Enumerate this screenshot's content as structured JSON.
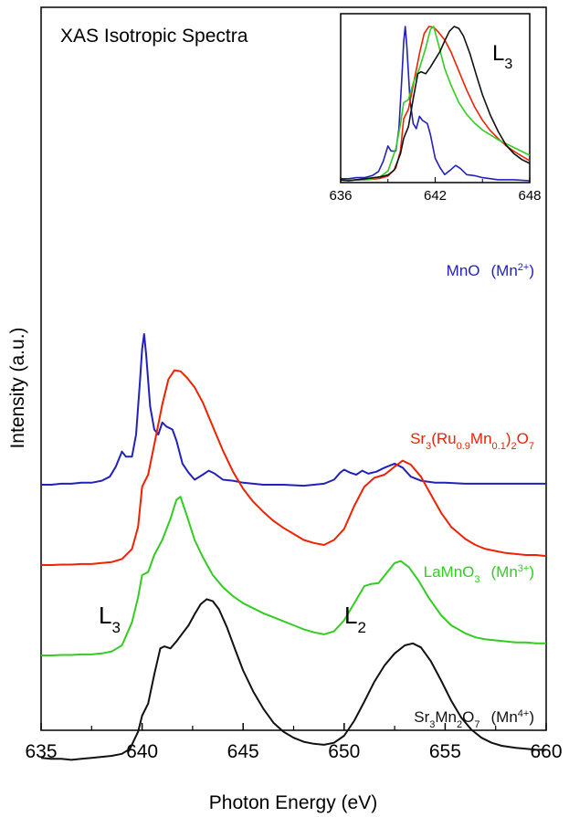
{
  "chart_data": {
    "type": "line",
    "title": "XAS Isotropic Spectra",
    "xlabel": "Photon Energy (eV)",
    "ylabel": "Intensity (a.u.)",
    "xlim": [
      635,
      660
    ],
    "x_ticks": [
      "635",
      "640",
      "645",
      "650",
      "655",
      "660"
    ],
    "series": [
      {
        "name": "MnO",
        "label_main": "MnO",
        "label_ion": "(Mn",
        "label_charge": "2+",
        "label_close": ")",
        "color": "#2222bb",
        "offset": 2.4,
        "points": [
          [
            635.0,
            0.0
          ],
          [
            635.5,
            0.0
          ],
          [
            636.0,
            0.01
          ],
          [
            636.5,
            0.01
          ],
          [
            637.0,
            0.02
          ],
          [
            637.5,
            0.02
          ],
          [
            638.0,
            0.04
          ],
          [
            638.4,
            0.08
          ],
          [
            638.7,
            0.18
          ],
          [
            639.0,
            0.33
          ],
          [
            639.2,
            0.28
          ],
          [
            639.5,
            0.28
          ],
          [
            639.7,
            0.5
          ],
          [
            639.9,
            1.05
          ],
          [
            640.0,
            1.35
          ],
          [
            640.1,
            1.5
          ],
          [
            640.2,
            1.3
          ],
          [
            640.4,
            0.78
          ],
          [
            640.6,
            0.55
          ],
          [
            640.8,
            0.5
          ],
          [
            641.0,
            0.62
          ],
          [
            641.2,
            0.58
          ],
          [
            641.5,
            0.55
          ],
          [
            641.7,
            0.44
          ],
          [
            642.0,
            0.21
          ],
          [
            642.3,
            0.12
          ],
          [
            642.6,
            0.05
          ],
          [
            643.0,
            0.1
          ],
          [
            643.3,
            0.14
          ],
          [
            643.6,
            0.11
          ],
          [
            644.0,
            0.05
          ],
          [
            644.5,
            0.04
          ],
          [
            645.0,
            0.02
          ],
          [
            646.0,
            0.0
          ],
          [
            647.0,
            0.0
          ],
          [
            648.0,
            -0.01
          ],
          [
            649.0,
            0.01
          ],
          [
            649.5,
            0.05
          ],
          [
            649.8,
            0.12
          ],
          [
            650.0,
            0.15
          ],
          [
            650.3,
            0.12
          ],
          [
            650.6,
            0.1
          ],
          [
            650.9,
            0.14
          ],
          [
            651.2,
            0.11
          ],
          [
            651.6,
            0.13
          ],
          [
            652.0,
            0.17
          ],
          [
            652.5,
            0.21
          ],
          [
            652.9,
            0.17
          ],
          [
            653.3,
            0.08
          ],
          [
            653.8,
            0.04
          ],
          [
            654.5,
            0.02
          ],
          [
            655.0,
            0.02
          ],
          [
            656.0,
            0.01
          ],
          [
            657.0,
            0.01
          ],
          [
            658.0,
            0.01
          ],
          [
            659.0,
            0.01
          ],
          [
            660.0,
            0.01
          ]
        ]
      },
      {
        "name": "Sr3(Ru0.9Mn0.1)2O7",
        "label_html": "Sr<tspan baseline-shift=\"sub\" font-size=\"11\">3</tspan>(Ru<tspan baseline-shift=\"sub\" font-size=\"11\">0.9</tspan>Mn<tspan baseline-shift=\"sub\" font-size=\"11\">0.1</tspan>)<tspan baseline-shift=\"sub\" font-size=\"11\">2</tspan>O<tspan baseline-shift=\"sub\" font-size=\"11\">7</tspan>",
        "label_text": "Sr3(Ru0.9Mn0.1)2O7",
        "color": "#ee2200",
        "offset": 1.6,
        "points": [
          [
            635.0,
            0.0
          ],
          [
            635.5,
            0.0
          ],
          [
            636.0,
            0.005
          ],
          [
            636.5,
            0.005
          ],
          [
            637.0,
            0.01
          ],
          [
            637.5,
            0.01
          ],
          [
            638.0,
            0.02
          ],
          [
            638.5,
            0.03
          ],
          [
            639.0,
            0.06
          ],
          [
            639.5,
            0.16
          ],
          [
            639.8,
            0.38
          ],
          [
            640.0,
            0.78
          ],
          [
            640.3,
            0.9
          ],
          [
            640.6,
            1.2
          ],
          [
            641.0,
            1.6
          ],
          [
            641.3,
            1.85
          ],
          [
            641.6,
            1.94
          ],
          [
            641.9,
            1.93
          ],
          [
            642.2,
            1.87
          ],
          [
            642.6,
            1.77
          ],
          [
            643.0,
            1.62
          ],
          [
            643.5,
            1.38
          ],
          [
            644.0,
            1.14
          ],
          [
            644.5,
            0.93
          ],
          [
            645.0,
            0.76
          ],
          [
            645.5,
            0.63
          ],
          [
            646.0,
            0.53
          ],
          [
            646.5,
            0.44
          ],
          [
            647.0,
            0.37
          ],
          [
            647.5,
            0.31
          ],
          [
            648.0,
            0.25
          ],
          [
            648.5,
            0.22
          ],
          [
            649.0,
            0.2
          ],
          [
            649.5,
            0.25
          ],
          [
            650.0,
            0.36
          ],
          [
            650.5,
            0.59
          ],
          [
            651.0,
            0.78
          ],
          [
            651.5,
            0.87
          ],
          [
            652.0,
            0.9
          ],
          [
            652.5,
            0.98
          ],
          [
            652.9,
            1.04
          ],
          [
            653.3,
            1.0
          ],
          [
            653.8,
            0.88
          ],
          [
            654.3,
            0.7
          ],
          [
            654.8,
            0.52
          ],
          [
            655.3,
            0.38
          ],
          [
            656.0,
            0.26
          ],
          [
            656.5,
            0.2
          ],
          [
            657.0,
            0.16
          ],
          [
            657.5,
            0.14
          ],
          [
            658.0,
            0.12
          ],
          [
            658.5,
            0.11
          ],
          [
            659.0,
            0.1
          ],
          [
            659.5,
            0.1
          ],
          [
            660.0,
            0.09
          ]
        ]
      },
      {
        "name": "LaMnO3",
        "label_main": "LaMnO",
        "label_sub": "3",
        "label_ion": "(Mn",
        "label_charge": "3+",
        "label_close": ")",
        "color": "#33cc22",
        "offset": 0.7,
        "points": [
          [
            635.0,
            0.0
          ],
          [
            635.5,
            0.0
          ],
          [
            636.0,
            0.005
          ],
          [
            636.5,
            0.005
          ],
          [
            637.0,
            0.01
          ],
          [
            637.5,
            0.01
          ],
          [
            638.0,
            0.02
          ],
          [
            638.5,
            0.04
          ],
          [
            639.0,
            0.1
          ],
          [
            639.5,
            0.33
          ],
          [
            639.8,
            0.58
          ],
          [
            640.0,
            0.8
          ],
          [
            640.3,
            0.83
          ],
          [
            640.6,
            1.0
          ],
          [
            641.0,
            1.15
          ],
          [
            641.4,
            1.36
          ],
          [
            641.7,
            1.55
          ],
          [
            641.9,
            1.58
          ],
          [
            642.2,
            1.4
          ],
          [
            642.6,
            1.15
          ],
          [
            643.0,
            0.98
          ],
          [
            643.5,
            0.8
          ],
          [
            644.0,
            0.68
          ],
          [
            644.5,
            0.59
          ],
          [
            645.0,
            0.52
          ],
          [
            645.5,
            0.47
          ],
          [
            646.0,
            0.42
          ],
          [
            646.5,
            0.38
          ],
          [
            647.0,
            0.34
          ],
          [
            647.5,
            0.3
          ],
          [
            648.0,
            0.26
          ],
          [
            648.5,
            0.23
          ],
          [
            649.0,
            0.21
          ],
          [
            649.5,
            0.24
          ],
          [
            650.0,
            0.35
          ],
          [
            650.5,
            0.52
          ],
          [
            651.0,
            0.69
          ],
          [
            651.3,
            0.71
          ],
          [
            651.7,
            0.72
          ],
          [
            652.1,
            0.82
          ],
          [
            652.5,
            0.92
          ],
          [
            652.8,
            0.94
          ],
          [
            653.2,
            0.88
          ],
          [
            653.7,
            0.74
          ],
          [
            654.2,
            0.57
          ],
          [
            654.8,
            0.4
          ],
          [
            655.3,
            0.3
          ],
          [
            656.0,
            0.22
          ],
          [
            656.5,
            0.18
          ],
          [
            657.0,
            0.16
          ],
          [
            657.5,
            0.15
          ],
          [
            658.0,
            0.14
          ],
          [
            658.5,
            0.13
          ],
          [
            659.0,
            0.13
          ],
          [
            659.5,
            0.12
          ],
          [
            660.0,
            0.12
          ]
        ]
      },
      {
        "name": "Sr3Mn2O7",
        "label_html": "Sr<tspan baseline-shift=\"sub\" font-size=\"11\">3</tspan>Mn<tspan baseline-shift=\"sub\" font-size=\"11\">2</tspan>O<tspan baseline-shift=\"sub\" font-size=\"11\">7</tspan>",
        "label_text": "Sr3Mn2O7",
        "label_ion": "(Mn",
        "label_charge": "4+",
        "label_close": ")",
        "color": "#111111",
        "offset": -0.32,
        "points": [
          [
            635.0,
            0.0
          ],
          [
            635.5,
            -0.01
          ],
          [
            636.0,
            -0.01
          ],
          [
            636.5,
            -0.02
          ],
          [
            637.0,
            -0.01
          ],
          [
            637.5,
            0.0
          ],
          [
            638.0,
            0.01
          ],
          [
            638.5,
            0.02
          ],
          [
            639.0,
            0.04
          ],
          [
            639.4,
            0.09
          ],
          [
            639.8,
            0.26
          ],
          [
            640.0,
            0.42
          ],
          [
            640.3,
            0.54
          ],
          [
            640.6,
            0.83
          ],
          [
            640.9,
            1.09
          ],
          [
            641.1,
            1.11
          ],
          [
            641.4,
            1.09
          ],
          [
            641.7,
            1.16
          ],
          [
            642.0,
            1.24
          ],
          [
            642.3,
            1.32
          ],
          [
            642.6,
            1.43
          ],
          [
            642.9,
            1.53
          ],
          [
            643.2,
            1.58
          ],
          [
            643.5,
            1.56
          ],
          [
            643.8,
            1.48
          ],
          [
            644.2,
            1.3
          ],
          [
            644.6,
            1.08
          ],
          [
            645.0,
            0.87
          ],
          [
            645.5,
            0.66
          ],
          [
            646.0,
            0.49
          ],
          [
            646.5,
            0.35
          ],
          [
            647.0,
            0.26
          ],
          [
            647.5,
            0.2
          ],
          [
            648.0,
            0.16
          ],
          [
            648.5,
            0.14
          ],
          [
            649.0,
            0.13
          ],
          [
            649.5,
            0.15
          ],
          [
            650.0,
            0.22
          ],
          [
            650.5,
            0.37
          ],
          [
            651.0,
            0.56
          ],
          [
            651.5,
            0.76
          ],
          [
            652.0,
            0.92
          ],
          [
            652.5,
            1.04
          ],
          [
            653.0,
            1.12
          ],
          [
            653.4,
            1.14
          ],
          [
            653.8,
            1.1
          ],
          [
            654.3,
            0.96
          ],
          [
            654.8,
            0.77
          ],
          [
            655.3,
            0.57
          ],
          [
            655.8,
            0.4
          ],
          [
            656.3,
            0.28
          ],
          [
            656.8,
            0.2
          ],
          [
            657.3,
            0.15
          ],
          [
            657.8,
            0.12
          ],
          [
            658.5,
            0.1
          ],
          [
            659.0,
            0.09
          ],
          [
            659.5,
            0.08
          ],
          [
            660.0,
            0.08
          ]
        ]
      }
    ],
    "peak_labels": [
      {
        "main": "L",
        "sub": "3",
        "x": 640.6,
        "y": 0.9
      },
      {
        "main": "L",
        "sub": "2",
        "x": 650.4,
        "y": 0.9
      }
    ],
    "inset": {
      "title_main": "L",
      "title_sub": "3",
      "xlim": [
        636,
        648
      ],
      "x_ticks": [
        "636",
        "642",
        "648"
      ]
    }
  }
}
